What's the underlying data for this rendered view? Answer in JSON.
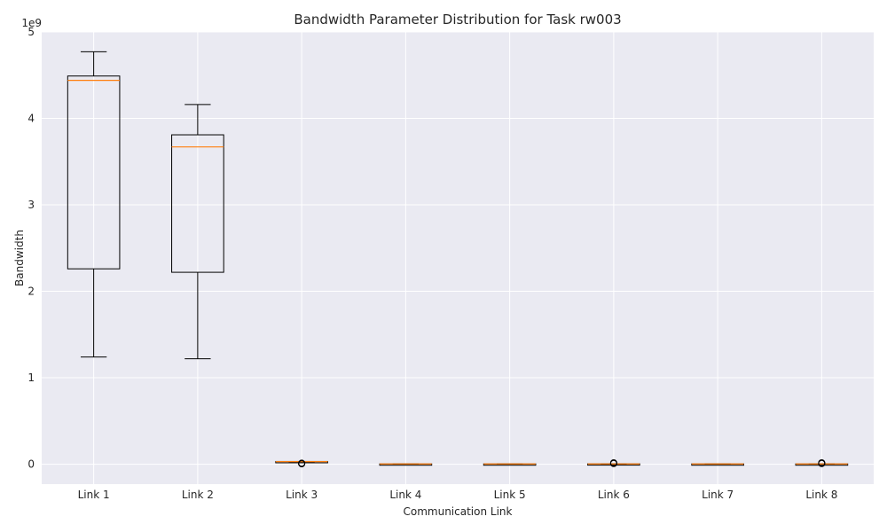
{
  "chart_data": {
    "type": "boxplot",
    "title": "Bandwidth Parameter Distribution for Task rw003",
    "xlabel": "Communication Link",
    "ylabel": "Bandwidth",
    "y_offset_label": "1e9",
    "ylim": [
      -0.23,
      5.0
    ],
    "yticks": [
      0,
      1,
      2,
      3,
      4,
      5
    ],
    "categories": [
      "Link 1",
      "Link 2",
      "Link 3",
      "Link 4",
      "Link 5",
      "Link 6",
      "Link 7",
      "Link 8"
    ],
    "boxes": [
      {
        "whisker_low": 1.24,
        "q1": 2.26,
        "median": 4.44,
        "q3": 4.49,
        "whisker_high": 4.77,
        "outliers": []
      },
      {
        "whisker_low": 1.22,
        "q1": 2.22,
        "median": 3.67,
        "q3": 3.81,
        "whisker_high": 4.16,
        "outliers": []
      },
      {
        "whisker_low": 0.028,
        "q1": 0.028,
        "median": 0.03,
        "q3": 0.032,
        "whisker_high": 0.032,
        "outliers": [
          0.005,
          0.008,
          0.012
        ]
      },
      {
        "whisker_low": 0.001,
        "q1": 0.002,
        "median": 0.003,
        "q3": 0.004,
        "whisker_high": 0.005,
        "outliers": []
      },
      {
        "whisker_low": 0.001,
        "q1": 0.002,
        "median": 0.003,
        "q3": 0.004,
        "whisker_high": 0.005,
        "outliers": []
      },
      {
        "whisker_low": 0.001,
        "q1": 0.002,
        "median": 0.003,
        "q3": 0.005,
        "whisker_high": 0.006,
        "outliers": [
          0.008,
          0.012,
          0.016
        ]
      },
      {
        "whisker_low": 0.001,
        "q1": 0.002,
        "median": 0.003,
        "q3": 0.004,
        "whisker_high": 0.005,
        "outliers": []
      },
      {
        "whisker_low": 0.001,
        "q1": 0.002,
        "median": 0.003,
        "q3": 0.004,
        "whisker_high": 0.005,
        "outliers": [
          0.008,
          0.012,
          0.016
        ]
      }
    ],
    "grid": true,
    "colors": {
      "plot_background": "#eaeaf2",
      "grid": "#ffffff",
      "box": "#000000",
      "median": "#ff7f0e",
      "text": "#262626"
    }
  }
}
